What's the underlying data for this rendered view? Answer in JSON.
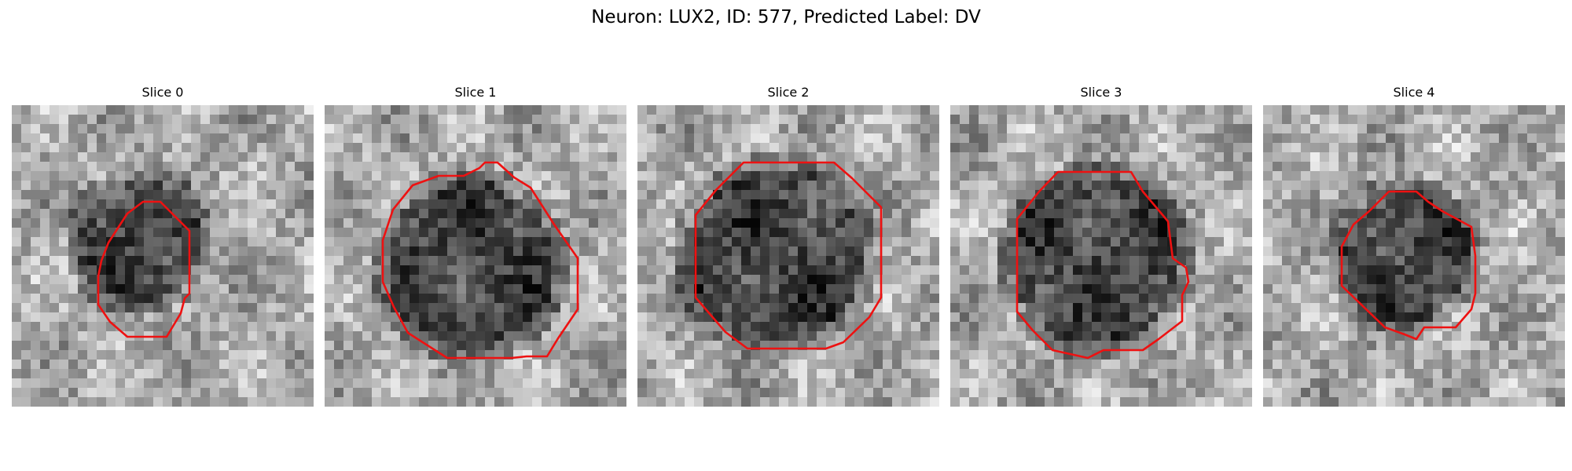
{
  "figure": {
    "title": "Neuron: LUX2, ID: 577, Predicted Label: DV",
    "contour_color": "#ee1111"
  },
  "slices": [
    {
      "title": "Slice 0"
    },
    {
      "title": "Slice 1"
    },
    {
      "title": "Slice 2"
    },
    {
      "title": "Slice 3"
    },
    {
      "title": "Slice 4"
    }
  ]
}
